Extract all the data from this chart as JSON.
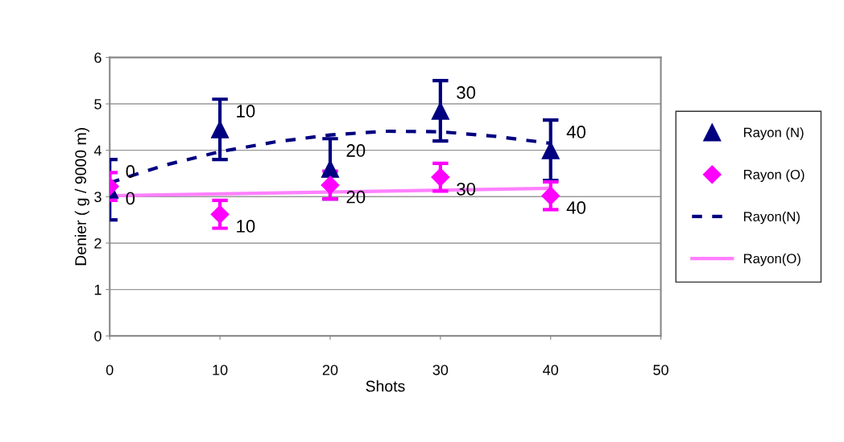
{
  "chart_data": {
    "type": "scatter",
    "xlabel": "Shots",
    "ylabel": "Denier ( g / 9000 m)",
    "xlim": [
      0,
      50
    ],
    "xticks": [
      0,
      10,
      20,
      30,
      40,
      50
    ],
    "ylim": [
      0,
      6
    ],
    "yticks": [
      0,
      1,
      2,
      3,
      4,
      5,
      6
    ],
    "grid": "y",
    "legend": "right",
    "series": [
      {
        "name": "Rayon (N)",
        "marker": "triangle",
        "color": "#000080",
        "x": [
          0,
          10,
          20,
          30,
          40
        ],
        "values": [
          3.15,
          4.45,
          3.6,
          4.85,
          4.0
        ],
        "errors": [
          0.65,
          0.65,
          0.65,
          0.65,
          0.65
        ]
      },
      {
        "name": "Rayon (O)",
        "marker": "diamond",
        "color": "#ff00ff",
        "x": [
          0,
          10,
          20,
          30,
          40
        ],
        "values": [
          3.22,
          2.62,
          3.25,
          3.42,
          3.02
        ],
        "errors": [
          0.3,
          0.3,
          0.3,
          0.3,
          0.3
        ]
      },
      {
        "name": "Rayon(N)",
        "type": "line",
        "line_style": "dashed",
        "marker": "none",
        "color": "#000080",
        "x": [
          0,
          5,
          10,
          15,
          20,
          25,
          30,
          35,
          40
        ],
        "values": [
          3.3,
          3.68,
          3.97,
          4.18,
          4.33,
          4.41,
          4.4,
          4.3,
          4.15
        ]
      },
      {
        "name": "Rayon(O)",
        "type": "line",
        "line_style": "solid",
        "marker": "none",
        "color": "#ff80ff",
        "x": [
          0,
          40
        ],
        "values": [
          3.02,
          3.18
        ]
      }
    ],
    "annotations": [
      {
        "text": "0",
        "x": 0,
        "y": 3.15
      },
      {
        "text": "10",
        "x": 10,
        "y": 4.45
      },
      {
        "text": "20",
        "x": 20,
        "y": 3.6
      },
      {
        "text": "30",
        "x": 30,
        "y": 4.85
      },
      {
        "text": "40",
        "x": 40,
        "y": 4.0
      },
      {
        "text": "0",
        "x": 0,
        "y": 3.22
      },
      {
        "text": "10",
        "x": 10,
        "y": 2.62
      },
      {
        "text": "20",
        "x": 20,
        "y": 3.25
      },
      {
        "text": "30",
        "x": 30,
        "y": 3.42
      },
      {
        "text": "40",
        "x": 40,
        "y": 3.02
      }
    ]
  }
}
